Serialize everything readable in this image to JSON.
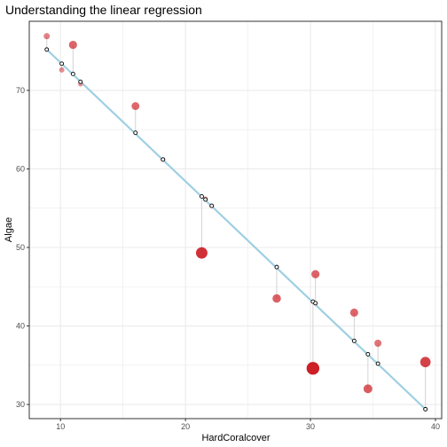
{
  "chart_data": {
    "type": "scatter",
    "title": "Understanding the linear regression",
    "xlabel": "HardCoralcover",
    "ylabel": "Algae",
    "xlim": [
      7.5,
      40.5
    ],
    "ylim": [
      28.2,
      78.8
    ],
    "x_ticks": [
      10,
      20,
      30,
      40
    ],
    "y_ticks": [
      30,
      40,
      50,
      60,
      70
    ],
    "grid": true,
    "fit_line": {
      "x": [
        8.9,
        39.2
      ],
      "y": [
        75.2,
        29.4
      ]
    },
    "points": [
      {
        "x": 8.9,
        "observed": 76.9,
        "fitted": 75.2
      },
      {
        "x": 10.1,
        "observed": 72.6,
        "fitted": 73.4
      },
      {
        "x": 11.0,
        "observed": 75.8,
        "fitted": 72.1
      },
      {
        "x": 11.6,
        "observed": 70.8,
        "fitted": 71.1
      },
      {
        "x": 16.0,
        "observed": 68.0,
        "fitted": 64.6
      },
      {
        "x": 18.2,
        "observed": 61.2,
        "fitted": 61.2
      },
      {
        "x": 21.3,
        "observed": 49.3,
        "fitted": 56.5
      },
      {
        "x": 21.6,
        "observed": 56.2,
        "fitted": 56.1
      },
      {
        "x": 22.1,
        "observed": 55.3,
        "fitted": 55.3
      },
      {
        "x": 27.3,
        "observed": 43.5,
        "fitted": 47.5
      },
      {
        "x": 30.2,
        "observed": 34.6,
        "fitted": 43.1
      },
      {
        "x": 30.4,
        "observed": 46.6,
        "fitted": 42.9
      },
      {
        "x": 33.5,
        "observed": 41.7,
        "fitted": 38.1
      },
      {
        "x": 34.6,
        "observed": 32.0,
        "fitted": 36.4
      },
      {
        "x": 35.4,
        "observed": 37.8,
        "fitted": 35.2
      },
      {
        "x": 39.2,
        "observed": 35.4,
        "fitted": 29.4
      }
    ],
    "colors": {
      "fit_line": "#9ecfe2",
      "residual": "#d3d3d3",
      "observed": "#cc1f26",
      "fitted_stroke": "#000000",
      "grid": "#ebebeb",
      "panel_border": "#333333"
    }
  }
}
